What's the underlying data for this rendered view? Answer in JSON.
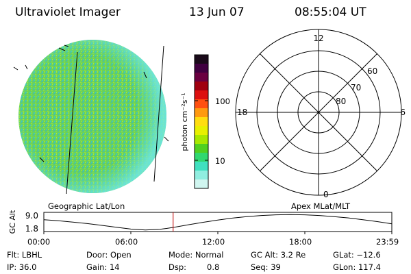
{
  "header": {
    "instrument": "Ultraviolet Imager",
    "date": "13 Jun 07",
    "time": "08:55:04 UT"
  },
  "image_panel": {
    "label": "Geographic Lat/Lon"
  },
  "colorbar": {
    "unit_label": "photon cm⁻²s⁻¹",
    "ticks": [
      "100",
      "10"
    ],
    "colors": [
      "#1a0a1a",
      "#400040",
      "#6a0040",
      "#a00010",
      "#dd1010",
      "#ff5010",
      "#ff9a10",
      "#ffdd10",
      "#e8f000",
      "#a8e800",
      "#50d020",
      "#30d870",
      "#40e0c0",
      "#90eee0",
      "#d0f6f0"
    ]
  },
  "polar_panel": {
    "label": "Apex MLat/MLT",
    "mlt_labels": [
      "12",
      "18",
      "6",
      "0"
    ],
    "lat_labels": [
      "60",
      "70",
      "80"
    ]
  },
  "chart_data": {
    "type": "line",
    "title": "",
    "ylabel": "GC Alt",
    "y_ticks": [
      "9.0",
      "1.8"
    ],
    "x_ticks": [
      "00:00",
      "06:00",
      "12:00",
      "18:00",
      "23:59"
    ],
    "ylim": [
      1.8,
      9.0
    ],
    "xlim_hours": [
      0,
      24
    ],
    "current_time_hours": 8.918,
    "series": [
      {
        "x": [
          0,
          1,
          2,
          3,
          4,
          5,
          6,
          7,
          8,
          8.5,
          9,
          10,
          11,
          12,
          13,
          14,
          15,
          16,
          17,
          18,
          19,
          20,
          21,
          22,
          23,
          24
        ],
        "y": [
          6.6,
          6.1,
          5.5,
          4.8,
          4.0,
          3.1,
          2.3,
          1.9,
          2.2,
          2.6,
          3.1,
          4.3,
          5.4,
          6.4,
          7.3,
          8.0,
          8.5,
          8.8,
          8.9,
          8.8,
          8.5,
          8.0,
          7.4,
          6.6,
          5.7,
          4.7
        ]
      }
    ]
  },
  "info": {
    "flt": "Flt: LBHL",
    "ip": "IP: 36.0",
    "door": "Door: Open",
    "gain": "Gain: 14",
    "mode": "Mode: Normal",
    "dsp_label": "Dsp:",
    "dsp_value": "0.8",
    "gcalt": "GC Alt: 3.2 Re",
    "seq": "Seq: 39",
    "glat": "GLat: −12.6",
    "glon": "GLon: 117.4"
  },
  "colors": {
    "accent_line": "#c00000",
    "disk_main": "#60d060",
    "disk_edge": "#60e0c8"
  }
}
